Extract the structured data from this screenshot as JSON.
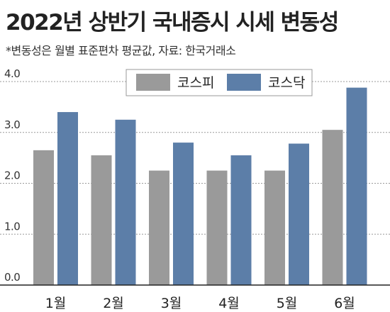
{
  "title": "2022년 상반기 국내증시 시세 변동성",
  "subtitle": "*변동성은 월별 표준편차 평균값, 자료: 한국거래소",
  "colors": {
    "kospi": "#9a9a9a",
    "kosdaq": "#5c7ea8",
    "grid": "#9a9a9a",
    "axis": "#222222"
  },
  "chart_data": {
    "type": "bar",
    "categories": [
      "1월",
      "2월",
      "3월",
      "4월",
      "5월",
      "6월"
    ],
    "series": [
      {
        "name": "코스피",
        "values": [
          2.65,
          2.55,
          2.25,
          2.25,
          2.25,
          3.05
        ]
      },
      {
        "name": "코스닥",
        "values": [
          3.4,
          3.25,
          2.8,
          2.55,
          2.78,
          3.88
        ]
      }
    ],
    "yticks": [
      "0.0",
      "1.0",
      "2.0",
      "3.0",
      "4.0"
    ],
    "ylim": [
      0,
      4
    ],
    "grid": true,
    "legend": "top-center"
  }
}
